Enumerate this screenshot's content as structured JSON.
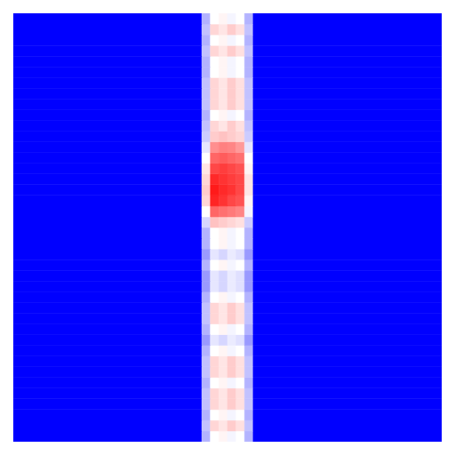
{
  "chart_data": {
    "type": "heatmap",
    "tick_labels": false,
    "xlim": [
      0,
      1
    ],
    "ylim": [
      0,
      1
    ],
    "color_range": [
      0,
      1
    ],
    "x_edges": [
      0,
      0.44,
      0.46,
      0.48,
      0.5,
      0.52,
      0.54,
      0.56,
      1
    ],
    "y_edges": [
      0,
      0.025,
      0.05,
      0.075,
      0.1,
      0.125,
      0.15,
      0.175,
      0.2,
      0.225,
      0.25,
      0.275,
      0.3,
      0.325,
      0.35,
      0.375,
      0.4,
      0.425,
      0.45,
      0.475,
      0.5,
      0.525,
      0.55,
      0.575,
      0.6,
      0.625,
      0.65,
      0.675,
      0.7,
      0.725,
      0.75,
      0.775,
      0.8,
      0.825,
      0.85,
      0.875,
      0.9,
      0.925,
      0.95,
      0.975,
      1
    ],
    "cells": [
      [
        0,
        0.35,
        0.5,
        0.52,
        0.48,
        0.5,
        0.35,
        0
      ],
      [
        0,
        0.38,
        0.58,
        0.55,
        0.6,
        0.56,
        0.38,
        0
      ],
      [
        0,
        0.35,
        0.5,
        0.52,
        0.48,
        0.5,
        0.35,
        0
      ],
      [
        0,
        0.38,
        0.58,
        0.55,
        0.6,
        0.56,
        0.38,
        0
      ],
      [
        0,
        0.38,
        0.58,
        0.55,
        0.6,
        0.56,
        0.38,
        0
      ],
      [
        0,
        0.35,
        0.5,
        0.52,
        0.48,
        0.5,
        0.35,
        0
      ],
      [
        0,
        0.38,
        0.58,
        0.55,
        0.6,
        0.56,
        0.38,
        0
      ],
      [
        0,
        0.38,
        0.58,
        0.55,
        0.6,
        0.56,
        0.38,
        0
      ],
      [
        0,
        0.35,
        0.5,
        0.52,
        0.48,
        0.5,
        0.35,
        0
      ],
      [
        0,
        0.3,
        0.45,
        0.42,
        0.46,
        0.44,
        0.3,
        0
      ],
      [
        0,
        0.35,
        0.5,
        0.52,
        0.48,
        0.5,
        0.35,
        0
      ],
      [
        0,
        0.38,
        0.58,
        0.55,
        0.6,
        0.56,
        0.38,
        0
      ],
      [
        0,
        0.38,
        0.58,
        0.55,
        0.6,
        0.56,
        0.38,
        0
      ],
      [
        0,
        0.35,
        0.5,
        0.52,
        0.48,
        0.5,
        0.35,
        0
      ],
      [
        0,
        0.3,
        0.45,
        0.42,
        0.46,
        0.44,
        0.3,
        0
      ],
      [
        0,
        0.3,
        0.45,
        0.42,
        0.46,
        0.44,
        0.3,
        0
      ],
      [
        0,
        0.35,
        0.5,
        0.52,
        0.48,
        0.5,
        0.35,
        0
      ],
      [
        0,
        0.3,
        0.45,
        0.42,
        0.46,
        0.44,
        0.3,
        0
      ],
      [
        0,
        0.35,
        0.5,
        0.52,
        0.48,
        0.5,
        0.35,
        0
      ],
      [
        0,
        0.35,
        0.5,
        0.52,
        0.48,
        0.5,
        0.35,
        0
      ],
      [
        0,
        0.42,
        0.62,
        0.6,
        0.58,
        0.56,
        0.4,
        0
      ],
      [
        0,
        0.5,
        0.8,
        0.78,
        0.76,
        0.74,
        0.48,
        0
      ],
      [
        0,
        0.58,
        0.93,
        0.9,
        0.86,
        0.84,
        0.52,
        0
      ],
      [
        0,
        0.6,
        0.95,
        0.92,
        0.9,
        0.86,
        0.55,
        0
      ],
      [
        0,
        0.58,
        0.92,
        0.9,
        0.88,
        0.86,
        0.55,
        0
      ],
      [
        0,
        0.55,
        0.86,
        0.88,
        0.86,
        0.84,
        0.52,
        0
      ],
      [
        0,
        0.5,
        0.8,
        0.82,
        0.8,
        0.78,
        0.5,
        0
      ],
      [
        0,
        0.45,
        0.72,
        0.75,
        0.74,
        0.7,
        0.45,
        0
      ],
      [
        0,
        0.4,
        0.6,
        0.62,
        0.6,
        0.58,
        0.4,
        0
      ],
      [
        0,
        0.38,
        0.58,
        0.55,
        0.6,
        0.56,
        0.38,
        0
      ],
      [
        0,
        0.35,
        0.5,
        0.52,
        0.48,
        0.5,
        0.35,
        0
      ],
      [
        0,
        0.38,
        0.58,
        0.55,
        0.6,
        0.56,
        0.38,
        0
      ],
      [
        0,
        0.38,
        0.58,
        0.55,
        0.6,
        0.56,
        0.38,
        0
      ],
      [
        0,
        0.38,
        0.58,
        0.55,
        0.6,
        0.56,
        0.38,
        0
      ],
      [
        0,
        0.35,
        0.5,
        0.52,
        0.48,
        0.5,
        0.35,
        0
      ],
      [
        0,
        0.35,
        0.5,
        0.52,
        0.48,
        0.5,
        0.35,
        0
      ],
      [
        0,
        0.38,
        0.58,
        0.55,
        0.6,
        0.56,
        0.38,
        0
      ],
      [
        0,
        0.35,
        0.5,
        0.52,
        0.48,
        0.5,
        0.35,
        0
      ],
      [
        0,
        0.38,
        0.58,
        0.55,
        0.6,
        0.56,
        0.38,
        0
      ],
      [
        0,
        0.35,
        0.5,
        0.52,
        0.48,
        0.5,
        0.35,
        0
      ]
    ]
  }
}
